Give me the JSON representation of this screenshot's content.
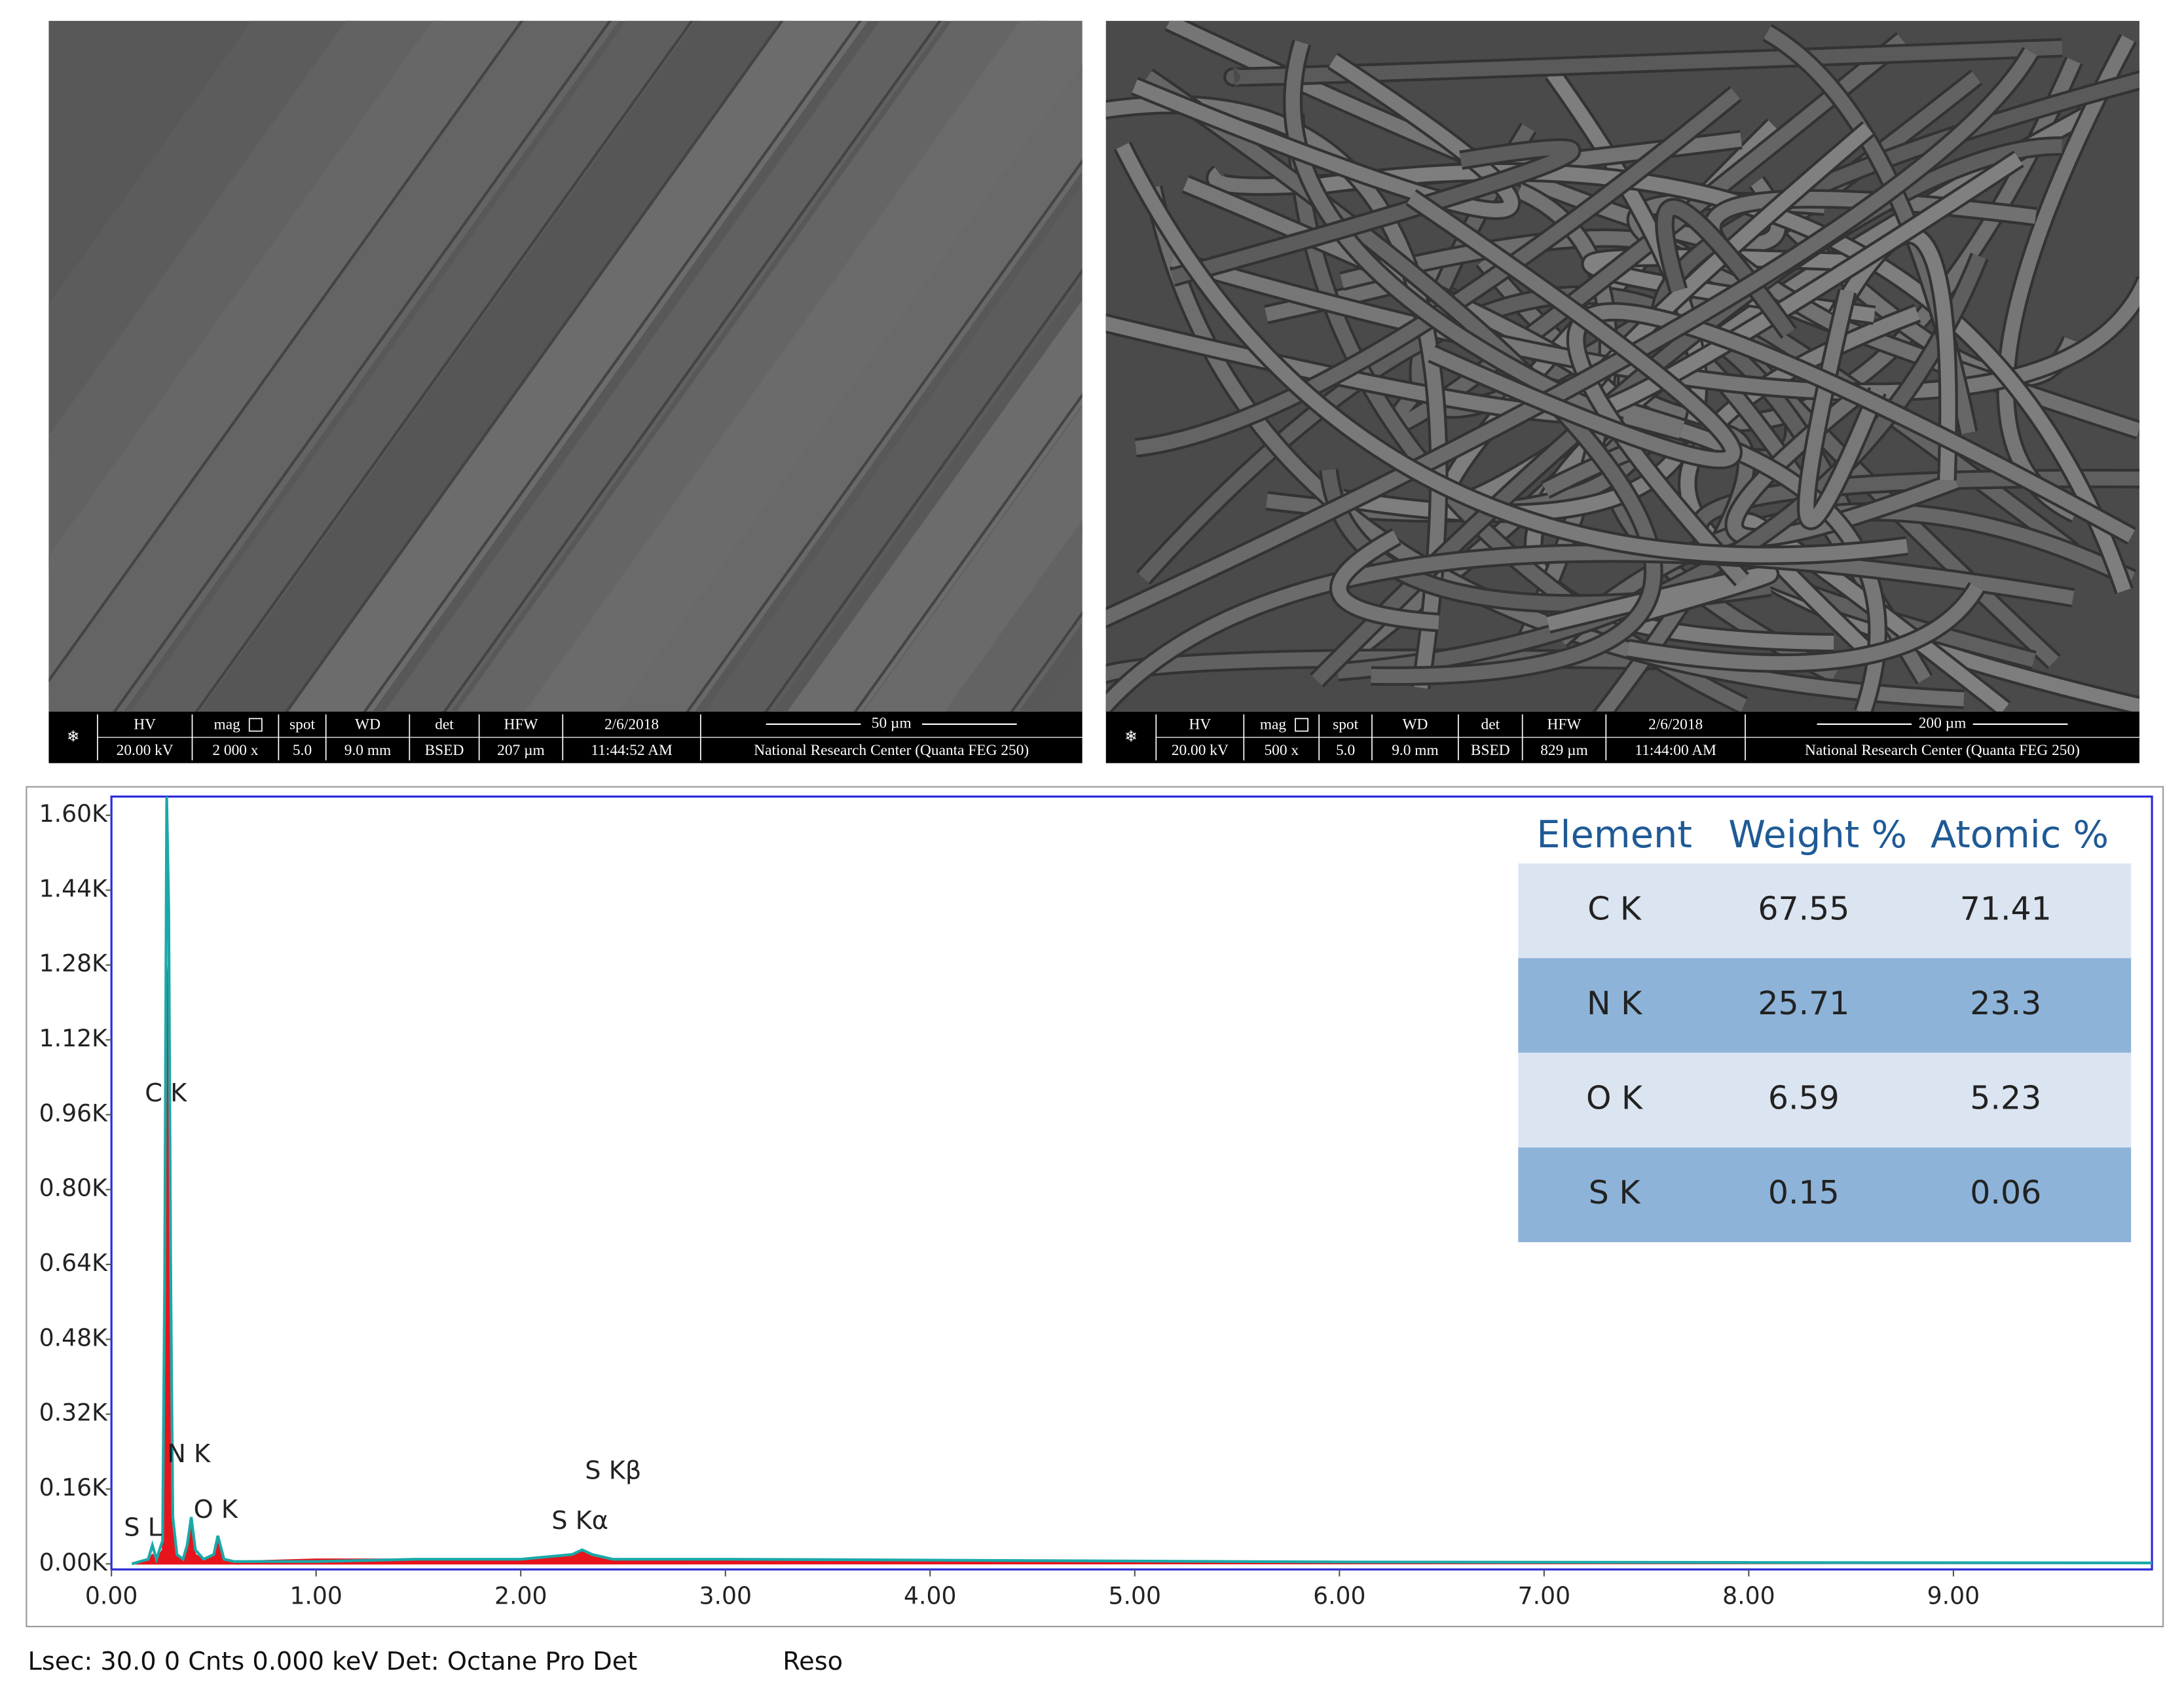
{
  "images": [
    {
      "columns": [
        {
          "label": "HV",
          "value": "20.00 kV"
        },
        {
          "label": "mag",
          "value": "2 000 x"
        },
        {
          "label": "spot",
          "value": "5.0"
        },
        {
          "label": "WD",
          "value": "9.0 mm"
        },
        {
          "label": "det",
          "value": "BSED"
        },
        {
          "label": "HFW",
          "value": "207 µm"
        },
        {
          "label": "2/6/2018",
          "value": "11:44:52 AM"
        },
        {
          "label": "50 µm",
          "value": "National Research Center (Quanta FEG 250)"
        }
      ]
    },
    {
      "columns": [
        {
          "label": "HV",
          "value": "20.00 kV"
        },
        {
          "label": "mag",
          "value": "500 x"
        },
        {
          "label": "spot",
          "value": "5.0"
        },
        {
          "label": "WD",
          "value": "9.0 mm"
        },
        {
          "label": "det",
          "value": "BSED"
        },
        {
          "label": "HFW",
          "value": "829 µm"
        },
        {
          "label": "2/6/2018",
          "value": "11:44:00 AM"
        },
        {
          "label": "200 µm",
          "value": "National Research Center (Quanta FEG 250)"
        }
      ]
    }
  ],
  "chart_data": {
    "type": "line",
    "x": [
      0.1,
      0.18,
      0.2,
      0.22,
      0.25,
      0.26,
      0.27,
      0.28,
      0.29,
      0.3,
      0.32,
      0.35,
      0.37,
      0.39,
      0.41,
      0.45,
      0.5,
      0.52,
      0.55,
      0.6,
      1.0,
      1.5,
      2.0,
      2.25,
      2.3,
      2.35,
      2.45,
      3.0,
      4.0,
      5.0,
      6.0,
      8.0,
      9.97
    ],
    "series": [
      {
        "color": "#e8141c",
        "fill": true,
        "values": [
          0,
          0.005,
          0.02,
          0.01,
          0.03,
          0.5,
          1.2,
          1.3,
          0.8,
          0.1,
          0.02,
          0.01,
          0.04,
          0.09,
          0.02,
          0.01,
          0.02,
          0.05,
          0.01,
          0.005,
          0.01,
          0.01,
          0.01,
          0.02,
          0.03,
          0.02,
          0.01,
          0.01,
          0.005,
          0.004,
          0.003,
          0.002,
          0.001
        ]
      },
      {
        "color": "#1aa9a9",
        "fill": false,
        "values": [
          0,
          0.01,
          0.04,
          0.01,
          0.05,
          0.6,
          1.64,
          1.4,
          0.6,
          0.1,
          0.02,
          0.01,
          0.04,
          0.1,
          0.03,
          0.01,
          0.02,
          0.06,
          0.01,
          0.005,
          0.005,
          0.01,
          0.01,
          0.02,
          0.03,
          0.02,
          0.01,
          0.01,
          0.008,
          0.006,
          0.004,
          0.003,
          0.002
        ]
      }
    ],
    "xlim": [
      0,
      9.97
    ],
    "ylim": [
      0,
      1.64
    ],
    "xticks": [
      {
        "value": 0,
        "label": "0.00"
      },
      {
        "value": 1,
        "label": "1.00"
      },
      {
        "value": 2,
        "label": "2.00"
      },
      {
        "value": 3,
        "label": "3.00"
      },
      {
        "value": 4,
        "label": "4.00"
      },
      {
        "value": 5,
        "label": "5.00"
      },
      {
        "value": 6,
        "label": "6.00"
      },
      {
        "value": 7,
        "label": "7.00"
      },
      {
        "value": 8,
        "label": "8.00"
      },
      {
        "value": 9,
        "label": "9.00"
      }
    ],
    "yticks": [
      {
        "value": 0,
        "label": "0.00K"
      },
      {
        "value": 0.16,
        "label": "0.16K"
      },
      {
        "value": 0.32,
        "label": "0.32K"
      },
      {
        "value": 0.48,
        "label": "0.48K"
      },
      {
        "value": 0.64,
        "label": "0.64K"
      },
      {
        "value": 0.8,
        "label": "0.80K"
      },
      {
        "value": 0.96,
        "label": "0.96K"
      },
      {
        "value": 1.12,
        "label": "1.12K"
      },
      {
        "value": 1.28,
        "label": "1.28K"
      },
      {
        "value": 1.44,
        "label": "1.44K"
      },
      {
        "value": 1.6,
        "label": "1.60K"
      }
    ],
    "annotations": [
      "C K",
      "N K",
      "O K",
      "S L",
      "S Kβ",
      "S Kα"
    ],
    "footer": [
      "Lsec: 30.0 0 Cnts  0.000 keV Det: Octane Pro Det",
      "Reso"
    ]
  },
  "table": {
    "columns": [
      "Element",
      "Weight %",
      "Atomic %"
    ],
    "rows": [
      [
        "C K",
        67.55,
        71.41
      ],
      [
        "N K",
        25.71,
        23.3
      ],
      [
        "O K",
        6.59,
        5.23
      ],
      [
        "S K",
        0.15,
        0.06
      ]
    ]
  }
}
